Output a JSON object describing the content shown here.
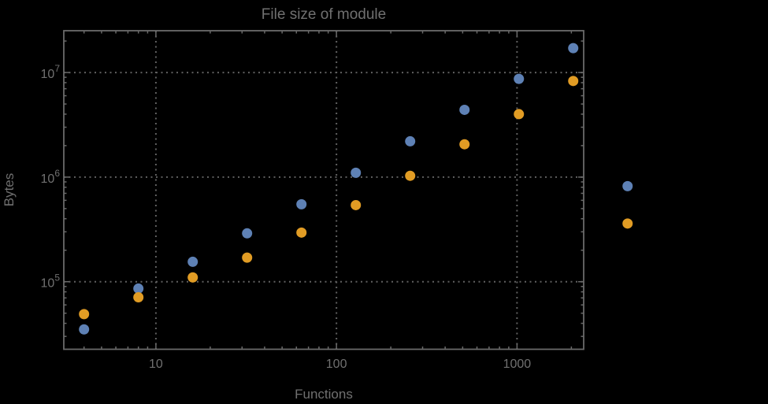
{
  "chart_data": {
    "type": "scatter",
    "title": "File size of module",
    "xlabel": "Functions",
    "ylabel": "Bytes",
    "xscale": "log",
    "yscale": "log",
    "xlim": [
      3.09,
      2340
    ],
    "ylim": [
      22600,
      25100000
    ],
    "grid": {
      "style": "dotted",
      "on": true,
      "x_lines": [
        10,
        100,
        1000
      ],
      "y_lines": [
        100000,
        1000000,
        10000000
      ]
    },
    "legend": "none",
    "x_ticks": [
      {
        "value": 10,
        "label": "10"
      },
      {
        "value": 100,
        "label": "100"
      },
      {
        "value": 1000,
        "label": "1000"
      }
    ],
    "y_ticks": [
      {
        "value": 100000,
        "base": "10",
        "exponent": "5"
      },
      {
        "value": 1000000,
        "base": "10",
        "exponent": "6"
      },
      {
        "value": 10000000,
        "base": "10",
        "exponent": "7"
      }
    ],
    "x": [
      4,
      8,
      16,
      32,
      64,
      128,
      256,
      512,
      1024,
      2048,
      4096
    ],
    "series": [
      {
        "name": "series-1-blue",
        "color": "#5e81b5",
        "values": [
          35000,
          86000,
          155000,
          290000,
          550000,
          1100000,
          2200000,
          4400000,
          8700000,
          17100000,
          820000
        ]
      },
      {
        "name": "series-2-orange",
        "color": "#e19c24",
        "values": [
          49000,
          71000,
          110000,
          170000,
          295000,
          540000,
          1030000,
          2060000,
          4000000,
          8300000,
          360000
        ]
      }
    ],
    "marker": {
      "shape": "circle",
      "diameter": 13
    }
  },
  "styles": {
    "background": "#000000",
    "frame_color": "#6a6a6a",
    "grid_color": "#606060",
    "text_color": "#707070"
  }
}
